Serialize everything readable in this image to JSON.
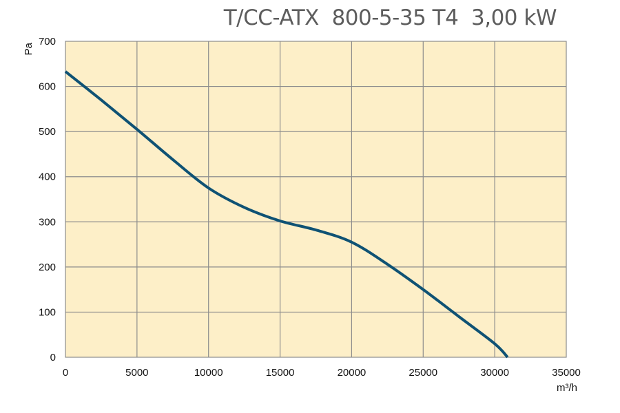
{
  "chart_data": {
    "type": "line",
    "title": "T/CC-ATX  800-5-35 T4  3,00 kW",
    "xlabel": "m³/h",
    "ylabel": "Pa",
    "xlim": [
      0,
      35000
    ],
    "ylim": [
      0,
      700
    ],
    "x_ticks": [
      "0",
      "5000",
      "10000",
      "15000",
      "20000",
      "25000",
      "30000",
      "35000"
    ],
    "y_ticks": [
      "0",
      "100",
      "200",
      "300",
      "400",
      "500",
      "600",
      "700"
    ],
    "grid": true,
    "plot_background": "#fdefc8",
    "grid_color": "#8c8c8c",
    "series": [
      {
        "color": "#0f5274",
        "x": [
          0,
          2500,
          5000,
          7500,
          10000,
          12500,
          15000,
          17500,
          20000,
          22500,
          25000,
          27500,
          30000,
          30900
        ],
        "y": [
          633,
          570,
          505,
          438,
          375,
          332,
          302,
          282,
          255,
          206,
          150,
          90,
          30,
          0
        ]
      }
    ]
  }
}
